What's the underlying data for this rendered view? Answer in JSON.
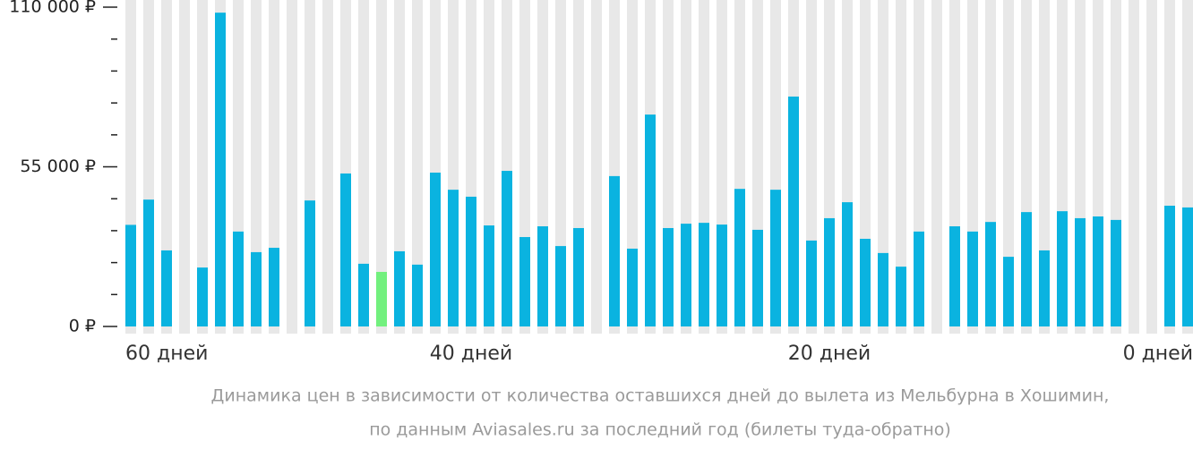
{
  "chart_data": {
    "type": "bar",
    "caption": [
      "Динамика цен в зависимости от количества оставшихся дней до вылета из Мельбурна в Хошимин,",
      "по данным Aviasales.ru за последний год (билеты туда-обратно)"
    ],
    "categories": [
      "60 дней",
      null,
      null,
      null,
      null,
      null,
      null,
      null,
      null,
      null,
      null,
      null,
      null,
      null,
      null,
      null,
      null,
      null,
      null,
      "40 дней",
      null,
      null,
      null,
      null,
      null,
      null,
      null,
      null,
      null,
      null,
      null,
      null,
      null,
      null,
      null,
      null,
      null,
      null,
      null,
      "20 дней",
      null,
      null,
      null,
      null,
      null,
      null,
      null,
      null,
      null,
      null,
      null,
      null,
      null,
      null,
      null,
      null,
      null,
      null,
      null,
      "0 дней"
    ],
    "values": [
      35000,
      43700,
      26200,
      null,
      20300,
      108100,
      32700,
      25600,
      27100,
      null,
      43400,
      null,
      52700,
      21600,
      18800,
      25900,
      21300,
      53000,
      47100,
      44700,
      34800,
      53600,
      30800,
      34500,
      27700,
      33900,
      null,
      51800,
      26800,
      73000,
      33900,
      35400,
      35700,
      35100,
      47400,
      33300,
      47100,
      79200,
      29600,
      37300,
      42800,
      30200,
      25300,
      20600,
      32700,
      null,
      34500,
      32700,
      36000,
      24000,
      39400,
      26200,
      39700,
      37300,
      37900,
      36700,
      null,
      null,
      41600,
      41000
    ],
    "color": "#0ab3e0",
    "highlight": {
      "index": 14,
      "color": "#72f07e"
    },
    "ylim": [
      0,
      110000
    ],
    "yticks": [
      {
        "value": 0,
        "label": "0 ₽"
      },
      {
        "value": 55000,
        "label": "55 000 ₽"
      },
      {
        "value": 110000,
        "label": "110 000 ₽"
      }
    ],
    "minor_yticks": [
      11000,
      22000,
      33000,
      44000,
      66000,
      77000,
      88000,
      99000
    ]
  }
}
